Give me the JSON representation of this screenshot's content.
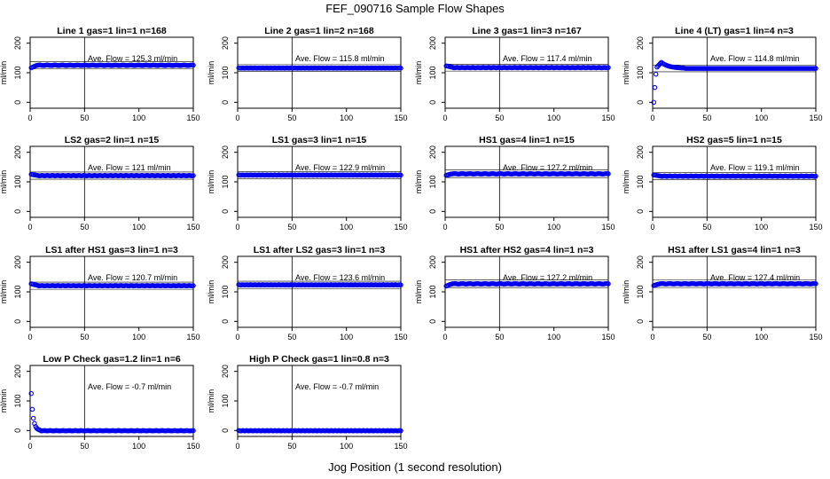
{
  "page": {
    "title": "FEF_090716  Sample Flow Shapes",
    "xlabel": "Jog Position (1 second resolution)"
  },
  "colors": {
    "points": "#0000ee",
    "axis": "#000000",
    "frame": "#000000"
  },
  "chart_data": [
    {
      "type": "scatter",
      "title": "Line 1 gas=1 lin=1 n=168",
      "ylabel": "ml/min",
      "annotation": "Ave. Flow =  125.3  ml/min",
      "mean": 125.3,
      "shape": "flat_rise",
      "start": 115,
      "xlim": [
        0,
        150
      ],
      "ylim": [
        -20,
        220
      ],
      "xticks": [
        0,
        50,
        100,
        150
      ],
      "yticks": [
        0,
        100,
        200
      ]
    },
    {
      "type": "scatter",
      "title": "Line 2 gas=1 lin=2 n=168",
      "ylabel": "ml/min",
      "annotation": "Ave. Flow =  115.8  ml/min",
      "mean": 115.8,
      "shape": "flat",
      "start": 116,
      "xlim": [
        0,
        150
      ],
      "ylim": [
        -20,
        220
      ],
      "xticks": [
        0,
        50,
        100,
        150
      ],
      "yticks": [
        0,
        100,
        200
      ]
    },
    {
      "type": "scatter",
      "title": "Line 3 gas=1 lin=3 n=167",
      "ylabel": "ml/min",
      "annotation": "Ave. Flow =  117.4  ml/min",
      "mean": 117.4,
      "shape": "flat_drop",
      "start": 124,
      "xlim": [
        0,
        150
      ],
      "ylim": [
        -20,
        220
      ],
      "xticks": [
        0,
        50,
        100,
        150
      ],
      "yticks": [
        0,
        100,
        200
      ]
    },
    {
      "type": "scatter",
      "title": "Line 4 (LT) gas=1 lin=4 n=3",
      "ylabel": "ml/min",
      "annotation": "Ave. Flow =  114.8  ml/min",
      "mean": 114.8,
      "shape": "overshoot",
      "start": 0,
      "xlim": [
        0,
        150
      ],
      "ylim": [
        -20,
        220
      ],
      "xticks": [
        0,
        50,
        100,
        150
      ],
      "yticks": [
        0,
        100,
        200
      ]
    },
    {
      "type": "scatter",
      "title": "LS2 gas=2 lin=1 n=15",
      "ylabel": "ml/min",
      "annotation": "Ave. Flow =  121  ml/min",
      "mean": 121,
      "shape": "flat_drop",
      "start": 126,
      "xlim": [
        0,
        150
      ],
      "ylim": [
        -20,
        220
      ],
      "xticks": [
        0,
        50,
        100,
        150
      ],
      "yticks": [
        0,
        100,
        200
      ]
    },
    {
      "type": "scatter",
      "title": "LS1 gas=3 lin=1 n=15",
      "ylabel": "ml/min",
      "annotation": "Ave. Flow =  122.9  ml/min",
      "mean": 122.9,
      "shape": "flat",
      "start": 123,
      "xlim": [
        0,
        150
      ],
      "ylim": [
        -20,
        220
      ],
      "xticks": [
        0,
        50,
        100,
        150
      ],
      "yticks": [
        0,
        100,
        200
      ]
    },
    {
      "type": "scatter",
      "title": "HS1 gas=4 lin=1 n=15",
      "ylabel": "ml/min",
      "annotation": "Ave. Flow =  127.2  ml/min",
      "mean": 127.2,
      "shape": "flat_rise",
      "start": 121,
      "xlim": [
        0,
        150
      ],
      "ylim": [
        -20,
        220
      ],
      "xticks": [
        0,
        50,
        100,
        150
      ],
      "yticks": [
        0,
        100,
        200
      ]
    },
    {
      "type": "scatter",
      "title": "HS2 gas=5 lin=1 n=15",
      "ylabel": "ml/min",
      "annotation": "Ave. Flow =  119.1  ml/min",
      "mean": 119.1,
      "shape": "flat_drop",
      "start": 124,
      "xlim": [
        0,
        150
      ],
      "ylim": [
        -20,
        220
      ],
      "xticks": [
        0,
        50,
        100,
        150
      ],
      "yticks": [
        0,
        100,
        200
      ]
    },
    {
      "type": "scatter",
      "title": "LS1 after HS1 gas=3 lin=1 n=3",
      "ylabel": "ml/min",
      "annotation": "Ave. Flow =  120.7  ml/min",
      "mean": 120.7,
      "shape": "flat_drop",
      "start": 128,
      "xlim": [
        0,
        150
      ],
      "ylim": [
        -20,
        220
      ],
      "xticks": [
        0,
        50,
        100,
        150
      ],
      "yticks": [
        0,
        100,
        200
      ]
    },
    {
      "type": "scatter",
      "title": "LS1 after LS2 gas=3 lin=1 n=3",
      "ylabel": "ml/min",
      "annotation": "Ave. Flow =  123.6  ml/min",
      "mean": 123.6,
      "shape": "flat",
      "start": 122,
      "xlim": [
        0,
        150
      ],
      "ylim": [
        -20,
        220
      ],
      "xticks": [
        0,
        50,
        100,
        150
      ],
      "yticks": [
        0,
        100,
        200
      ]
    },
    {
      "type": "scatter",
      "title": "HS1 after HS2 gas=4 lin=1 n=3",
      "ylabel": "ml/min",
      "annotation": "Ave. Flow =  127.2  ml/min",
      "mean": 127.2,
      "shape": "flat_rise",
      "start": 118,
      "xlim": [
        0,
        150
      ],
      "ylim": [
        -20,
        220
      ],
      "xticks": [
        0,
        50,
        100,
        150
      ],
      "yticks": [
        0,
        100,
        200
      ]
    },
    {
      "type": "scatter",
      "title": "HS1 after LS1 gas=4 lin=1 n=3",
      "ylabel": "ml/min",
      "annotation": "Ave. Flow =  127.4  ml/min",
      "mean": 127.4,
      "shape": "flat_rise",
      "start": 120,
      "xlim": [
        0,
        150
      ],
      "ylim": [
        -20,
        220
      ],
      "xticks": [
        0,
        50,
        100,
        150
      ],
      "yticks": [
        0,
        100,
        200
      ]
    },
    {
      "type": "scatter",
      "title": "Low P Check gas=1.2 lin=1 n=6",
      "ylabel": "ml/min",
      "annotation": "Ave. Flow =  -0.7  ml/min",
      "mean": -0.7,
      "shape": "decay",
      "start": 125,
      "xlim": [
        0,
        150
      ],
      "ylim": [
        -20,
        220
      ],
      "xticks": [
        0,
        50,
        100,
        150
      ],
      "yticks": [
        0,
        100,
        200
      ]
    },
    {
      "type": "scatter",
      "title": "High P Check gas=1 lin=0.8 n=3",
      "ylabel": "ml/min",
      "annotation": "Ave. Flow =  -0.7  ml/min",
      "mean": -0.7,
      "shape": "flat",
      "start": -0.7,
      "xlim": [
        0,
        150
      ],
      "ylim": [
        -20,
        220
      ],
      "xticks": [
        0,
        50,
        100,
        150
      ],
      "yticks": [
        0,
        100,
        200
      ]
    }
  ]
}
